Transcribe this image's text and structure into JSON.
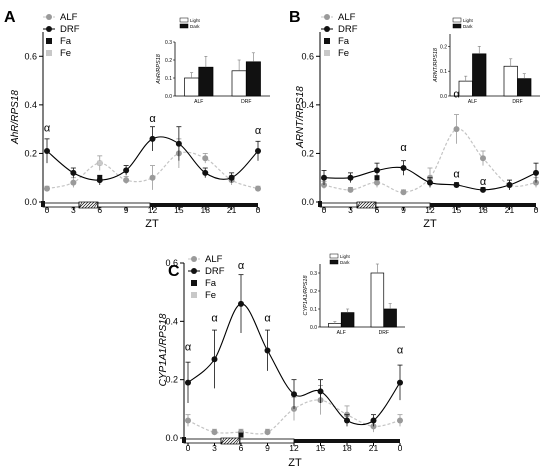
{
  "figure": {
    "panels": [
      {
        "letter": "A",
        "ylabel": "AhR/RPS18",
        "xlabel": "ZT",
        "yticks": [
          "0.0",
          "0.2",
          "0.4",
          "0.6"
        ],
        "xticks": [
          "0",
          "3",
          "6",
          "9",
          "12",
          "15",
          "18",
          "21",
          "0"
        ],
        "legend": [
          "ALF",
          "DRF",
          "Fa",
          "Fe"
        ]
      },
      {
        "letter": "B",
        "ylabel": "ARNT/RPS18",
        "xlabel": "ZT",
        "yticks": [
          "0.0",
          "0.2",
          "0.4",
          "0.6"
        ],
        "xticks": [
          "0",
          "3",
          "6",
          "9",
          "12",
          "15",
          "18",
          "21",
          "0"
        ],
        "legend": [
          "ALF",
          "DRF",
          "Fa",
          "Fe"
        ]
      },
      {
        "letter": "C",
        "ylabel": "CYP1A1/RPS18",
        "xlabel": "ZT",
        "yticks": [
          "0.0",
          "0.2",
          "0.4",
          "0.6"
        ],
        "xticks": [
          "0",
          "3",
          "6",
          "9",
          "12",
          "15",
          "18",
          "21",
          "0"
        ],
        "legend": [
          "ALF",
          "DRF",
          "Fa",
          "Fe"
        ]
      }
    ]
  },
  "colors": {
    "alf": "#9a9a9a",
    "drf": "#111111",
    "fa": "#111111",
    "fe": "#c8c8c8",
    "light": "#ffffff",
    "dark": "#111111"
  },
  "chart_data": [
    {
      "type": "line",
      "panel": "A",
      "ylabel": "AhR/RPS18",
      "xlabel": "ZT",
      "ylim": [
        0,
        0.7
      ],
      "x": [
        0,
        3,
        6,
        9,
        12,
        15,
        18,
        21,
        24
      ],
      "x_tick_labels": [
        "0",
        "3",
        "6",
        "9",
        "12",
        "15",
        "18",
        "21",
        "0"
      ],
      "series": [
        {
          "name": "ALF",
          "values": [
            0.055,
            0.08,
            0.16,
            0.09,
            0.1,
            0.2,
            0.18,
            0.09,
            0.055
          ],
          "errors": [
            0.01,
            0.02,
            0.03,
            0.015,
            0.05,
            0.06,
            0.02,
            0.02,
            0.01
          ]
        },
        {
          "name": "DRF",
          "values": [
            0.21,
            0.12,
            0.09,
            0.13,
            0.26,
            0.24,
            0.12,
            0.1,
            0.21
          ],
          "errors": [
            0.05,
            0.02,
            0.02,
            0.02,
            0.05,
            0.07,
            0.02,
            0.02,
            0.04
          ]
        }
      ],
      "markers": [
        {
          "name": "Fa",
          "x": 6,
          "y": 0.1
        },
        {
          "name": "Fe",
          "x": 6,
          "y": 0.16
        }
      ],
      "annotations": [
        {
          "text": "α",
          "x": 0,
          "y": 0.29
        },
        {
          "text": "α",
          "x": 12,
          "y": 0.33
        },
        {
          "text": "α",
          "x": 24,
          "y": 0.28
        }
      ],
      "inset": {
        "type": "bar",
        "ylabel": "AhR/RPS18",
        "yticks": [
          "0.0",
          "0.1",
          "0.2",
          "0.3"
        ],
        "ylim": [
          0,
          0.3
        ],
        "categories": [
          "ALF",
          "DRF"
        ],
        "legend": [
          "Light",
          "Dark"
        ],
        "series": [
          {
            "name": "Light",
            "values": [
              0.1,
              0.14
            ],
            "errors": [
              0.03,
              0.06
            ]
          },
          {
            "name": "Dark",
            "values": [
              0.16,
              0.19
            ],
            "errors": [
              0.06,
              0.05
            ]
          }
        ]
      }
    },
    {
      "type": "line",
      "panel": "B",
      "ylabel": "ARNT/RPS18",
      "xlabel": "ZT",
      "ylim": [
        0,
        0.7
      ],
      "x": [
        0,
        3,
        6,
        9,
        12,
        15,
        18,
        21,
        24
      ],
      "x_tick_labels": [
        "0",
        "3",
        "6",
        "9",
        "12",
        "15",
        "18",
        "21",
        "0"
      ],
      "series": [
        {
          "name": "ALF",
          "values": [
            0.07,
            0.05,
            0.08,
            0.04,
            0.1,
            0.3,
            0.18,
            0.07,
            0.08
          ],
          "errors": [
            0.015,
            0.01,
            0.02,
            0.01,
            0.04,
            0.06,
            0.03,
            0.02,
            0.02
          ]
        },
        {
          "name": "DRF",
          "values": [
            0.1,
            0.1,
            0.13,
            0.14,
            0.08,
            0.07,
            0.05,
            0.07,
            0.12
          ],
          "errors": [
            0.03,
            0.02,
            0.03,
            0.03,
            0.02,
            0.01,
            0.01,
            0.02,
            0.04
          ]
        }
      ],
      "markers": [
        {
          "name": "Fa",
          "x": 6,
          "y": 0.1
        }
      ],
      "annotations": [
        {
          "text": "α",
          "x": 9,
          "y": 0.21
        },
        {
          "text": "α",
          "x": 15,
          "y": 0.1
        },
        {
          "text": "α",
          "x": 18,
          "y": 0.07
        },
        {
          "text": "α",
          "x": 15,
          "y": 0.43
        }
      ],
      "inset": {
        "type": "bar",
        "ylabel": "ARNT/RPS18",
        "yticks": [
          "0.0",
          "0.1",
          "0.2"
        ],
        "ylim": [
          0,
          0.25
        ],
        "categories": [
          "ALF",
          "DRF"
        ],
        "legend": [
          "Light",
          "Dark"
        ],
        "series": [
          {
            "name": "Light",
            "values": [
              0.06,
              0.12
            ],
            "errors": [
              0.02,
              0.03
            ]
          },
          {
            "name": "Dark",
            "values": [
              0.17,
              0.07
            ],
            "errors": [
              0.03,
              0.02
            ]
          }
        ]
      }
    },
    {
      "type": "line",
      "panel": "C",
      "ylabel": "CYP1A1/RPS18",
      "xlabel": "ZT",
      "ylim": [
        0,
        0.6
      ],
      "x": [
        0,
        3,
        6,
        9,
        12,
        15,
        18,
        21,
        24
      ],
      "x_tick_labels": [
        "0",
        "3",
        "6",
        "9",
        "12",
        "15",
        "18",
        "21",
        "0"
      ],
      "series": [
        {
          "name": "ALF",
          "values": [
            0.06,
            0.02,
            0.02,
            0.02,
            0.1,
            0.13,
            0.08,
            0.04,
            0.06
          ],
          "errors": [
            0.02,
            0.01,
            0.01,
            0.01,
            0.04,
            0.05,
            0.03,
            0.02,
            0.02
          ]
        },
        {
          "name": "DRF",
          "values": [
            0.19,
            0.27,
            0.46,
            0.3,
            0.15,
            0.16,
            0.06,
            0.06,
            0.19
          ],
          "errors": [
            0.07,
            0.1,
            0.1,
            0.07,
            0.05,
            0.04,
            0.02,
            0.02,
            0.06
          ]
        }
      ],
      "markers": [
        {
          "name": "Fa",
          "x": 6,
          "y": 0.01
        }
      ],
      "annotations": [
        {
          "text": "α",
          "x": 0,
          "y": 0.3
        },
        {
          "text": "α",
          "x": 3,
          "y": 0.4
        },
        {
          "text": "α",
          "x": 6,
          "y": 0.58
        },
        {
          "text": "α",
          "x": 9,
          "y": 0.4
        },
        {
          "text": "α",
          "x": 24,
          "y": 0.29
        }
      ],
      "inset": {
        "type": "bar",
        "ylabel": "CYP1A1/RPS18",
        "yticks": [
          "0.0",
          "0.1",
          "0.2",
          "0.3"
        ],
        "ylim": [
          0,
          0.35
        ],
        "categories": [
          "ALF",
          "DRF"
        ],
        "legend": [
          "Light",
          "Dark"
        ],
        "series": [
          {
            "name": "Light",
            "values": [
              0.02,
              0.3
            ],
            "errors": [
              0.01,
              0.05
            ]
          },
          {
            "name": "Dark",
            "values": [
              0.08,
              0.1
            ],
            "errors": [
              0.02,
              0.03
            ]
          }
        ]
      }
    }
  ]
}
